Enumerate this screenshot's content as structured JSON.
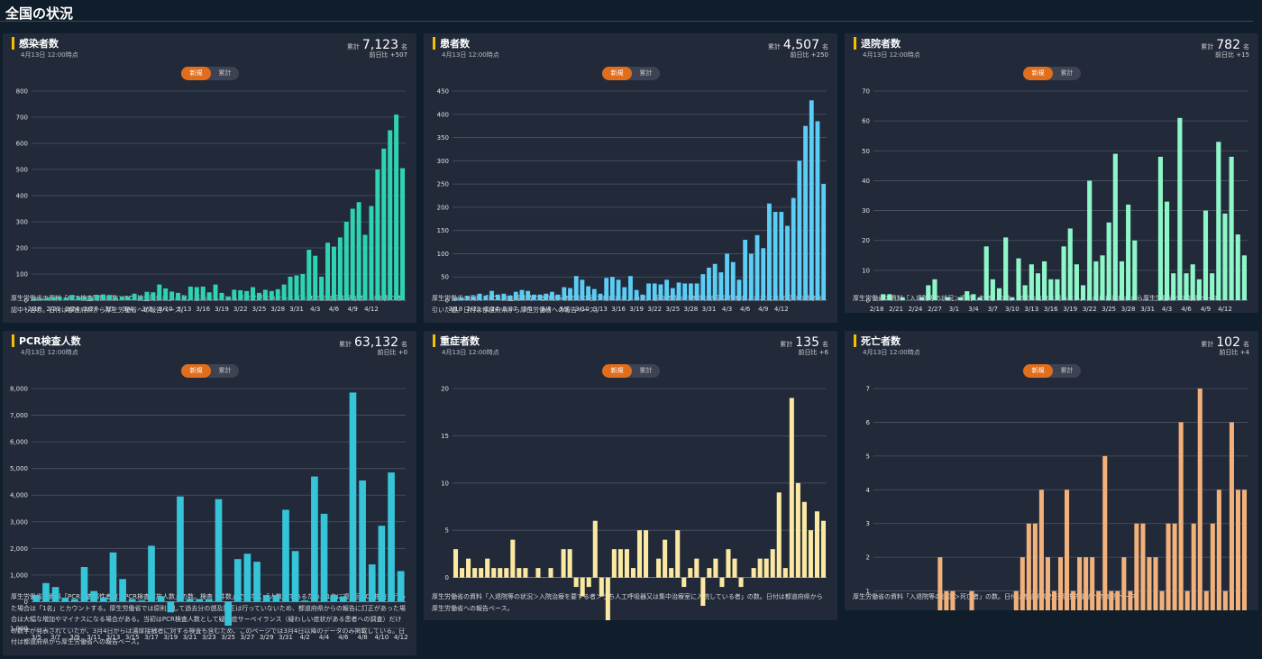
{
  "page": {
    "title": "全国の状況"
  },
  "common": {
    "total_label": "累計",
    "toggle_new": "新規",
    "toggle_cum": "累計"
  },
  "cards": [
    {
      "title": "感染者数",
      "date": "4月13日 12:00時点",
      "total": "7,123",
      "unit": "名",
      "dod": "前日比 +507",
      "note": "厚生労働省の資料「PCR検査陽性者数＞PCR検査陽性者」の数。感染はしているが症状がないケース（＝無症状病原体保有者）や症状の確認中も含む。日付は都道府県から厚生労働省への報告ベース。",
      "color": "#2ed3b2"
    },
    {
      "title": "患者数",
      "date": "4月13日 12:00時点",
      "total": "4,507",
      "unit": "名",
      "dod": "前日比 +250",
      "note": "厚生労働省の資料「PCR検査陽性時の有症状・無症状の別＞有症状者」の数。感染者数から無症状病原体保有者と症状有無確認中の数字を引いた値。日付は都道府県から厚生労働省への報告ベース。",
      "color": "#5ccdf5"
    },
    {
      "title": "退院者数",
      "date": "4月13日 12:00時点",
      "total": "782",
      "unit": "名",
      "dod": "前日比 +15",
      "note": "厚生労働省の資料「入退院等の状況＞退院した者」の数。症状の有無は問わない。日付は都道府県から厚生労働省への報告ベース。",
      "color": "#8df7c8"
    },
    {
      "title": "PCR検査人数",
      "date": "4月13日 12:00時点",
      "total": "63,132",
      "unit": "名",
      "dod": "前日比 +0",
      "note": "厚生労働省の資料「PCR検査陽性者数＞PCR検査実施人数」の数。検査「件数」ではなく「人数」であるため、1名に複数回PCR検査を行った場合は「1名」とカウントする。厚生労働省では原則として過去分の遡及訂正は行っていないため、都道府県からの報告に訂正があった場合は大幅な増加やマイナスになる場合がある。当初はPCR検査人数として疑似症サーベイランス（疑わしい症状がある患者への調査）だけの数字が発表されていたが、3月4日からは濃厚接触者に対する検査も含むため、このページでは3月4日以降のデータのみ掲載している。日付は都道府県から厚生労働省への報告ベース。",
      "color": "#36c4d8"
    },
    {
      "title": "重症者数",
      "date": "4月13日 12:00時点",
      "total": "135",
      "unit": "名",
      "dod": "前日比 +6",
      "note": "厚生労働省の資料「入退院等の状況＞入院治療を要する者＞うち人工呼吸器又は集中治療室に入院している者」の数。日付は都道府県から厚生労働省への報告ベース。",
      "color": "#fbe9a2"
    },
    {
      "title": "死亡者数",
      "date": "4月13日 12:00時点",
      "total": "102",
      "unit": "名",
      "dod": "前日比 +4",
      "note": "厚生労働省の資料「入退院等の状況＞死亡者」の数。日付は都道府県から厚生労働省への報告ベース。",
      "color": "#f2b07a"
    }
  ],
  "chart_data": [
    {
      "type": "bar",
      "series_color": "#2ed3b2",
      "ylim": [
        0,
        800
      ],
      "yticks": [
        0,
        100,
        200,
        300,
        400,
        500,
        600,
        700,
        800
      ],
      "x_start": "2/18",
      "xtick_labels": [
        "2/18",
        "2/21",
        "2/24",
        "2/27",
        "3/1",
        "3/4",
        "3/7",
        "3/10",
        "3/13",
        "3/16",
        "3/19",
        "3/22",
        "3/25",
        "3/28",
        "3/31",
        "4/3",
        "4/6",
        "4/9",
        "4/12"
      ],
      "values": [
        6,
        5,
        10,
        12,
        14,
        10,
        20,
        13,
        12,
        11,
        20,
        22,
        20,
        10,
        15,
        14,
        25,
        12,
        32,
        30,
        60,
        45,
        33,
        28,
        15,
        52,
        50,
        52,
        30,
        60,
        28,
        14,
        40,
        38,
        35,
        50,
        28,
        40,
        35,
        42,
        60,
        90,
        95,
        100,
        193,
        170,
        90,
        220,
        205,
        240,
        300,
        350,
        375,
        250,
        360,
        500,
        580,
        650,
        710,
        505
      ]
    },
    {
      "type": "bar",
      "series_color": "#5ccdf5",
      "ylim": [
        0,
        450
      ],
      "yticks": [
        0,
        50,
        100,
        150,
        200,
        250,
        300,
        350,
        400,
        450
      ],
      "x_start": "2/18",
      "xtick_labels": [
        "2/18",
        "2/21",
        "2/24",
        "2/27",
        "3/1",
        "3/4",
        "3/7",
        "3/10",
        "3/13",
        "3/16",
        "3/19",
        "3/22",
        "3/25",
        "3/28",
        "3/31",
        "4/3",
        "4/6",
        "4/9",
        "4/12"
      ],
      "values": [
        4,
        5,
        9,
        8,
        14,
        10,
        20,
        12,
        14,
        10,
        18,
        22,
        20,
        12,
        12,
        14,
        18,
        12,
        28,
        26,
        52,
        44,
        30,
        24,
        14,
        48,
        50,
        44,
        28,
        52,
        22,
        12,
        36,
        36,
        34,
        44,
        26,
        38,
        36,
        36,
        36,
        56,
        70,
        78,
        60,
        100,
        82,
        44,
        130,
        100,
        140,
        112,
        208,
        190,
        190,
        160,
        220,
        300,
        375,
        430,
        385,
        250
      ]
    },
    {
      "type": "bar",
      "series_color": "#8df7c8",
      "ylim": [
        0,
        70
      ],
      "yticks": [
        0,
        10,
        20,
        30,
        40,
        50,
        60,
        70
      ],
      "x_start": "2/18",
      "xtick_labels": [
        "2/18",
        "2/21",
        "2/24",
        "2/27",
        "3/1",
        "3/4",
        "3/7",
        "3/10",
        "3/13",
        "3/16",
        "3/19",
        "3/22",
        "3/25",
        "3/28",
        "3/31",
        "4/3",
        "4/6",
        "4/9",
        "4/12"
      ],
      "values": [
        0,
        2,
        2,
        0,
        1,
        0,
        0,
        1,
        5,
        7,
        0,
        1,
        0,
        1,
        3,
        2,
        1,
        18,
        7,
        4,
        21,
        1,
        14,
        5,
        12,
        9,
        13,
        7,
        7,
        18,
        24,
        12,
        5,
        40,
        13,
        15,
        26,
        49,
        13,
        32,
        20,
        0,
        0,
        0,
        48,
        33,
        9,
        61,
        9,
        12,
        7,
        30,
        9,
        53,
        29,
        48,
        22,
        15
      ]
    },
    {
      "type": "bar",
      "series_color": "#36c4d8",
      "ylim": [
        -1000,
        8000
      ],
      "yticks": [
        -1000,
        0,
        1000,
        2000,
        3000,
        4000,
        5000,
        6000,
        7000,
        8000
      ],
      "ytick_labels": [
        "-1,000",
        "0",
        "1,000",
        "2,000",
        "3,000",
        "4,000",
        "5,000",
        "6,000",
        "7,000",
        "8,000"
      ],
      "x_start": "3/5",
      "xtick_labels": [
        "3/5",
        "3/7",
        "3/9",
        "3/11",
        "3/13",
        "3/15",
        "3/17",
        "3/19",
        "3/21",
        "3/23",
        "3/25",
        "3/27",
        "3/29",
        "3/31",
        "4/2",
        "4/4",
        "4/6",
        "4/8",
        "4/10",
        "4/12"
      ],
      "values": [
        250,
        700,
        550,
        150,
        100,
        1300,
        400,
        150,
        1850,
        850,
        100,
        50,
        2100,
        200,
        -400,
        3950,
        100,
        100,
        100,
        3850,
        -900,
        1600,
        1800,
        1500,
        250,
        250,
        3450,
        1900,
        50,
        4700,
        3300,
        250,
        200,
        7850,
        4550,
        1400,
        2850,
        4850,
        1150
      ]
    },
    {
      "type": "bar",
      "series_color": "#fbe9a2",
      "ylim": [
        -5,
        20
      ],
      "yticks": [
        -5,
        0,
        5,
        10,
        15,
        20
      ],
      "x_start": "2/18",
      "xtick_labels": [
        "2/18",
        "2/21",
        "2/24",
        "2/27",
        "3/1",
        "3/4",
        "3/7",
        "3/10",
        "3/13",
        "3/16",
        "3/19",
        "3/22",
        "3/25",
        "3/28",
        "3/31",
        "4/3",
        "4/6",
        "4/9",
        "4/12"
      ],
      "values": [
        3,
        1,
        2,
        1,
        1,
        2,
        1,
        1,
        1,
        4,
        1,
        1,
        0,
        1,
        0,
        1,
        0,
        3,
        3,
        -1,
        -2,
        -1,
        6,
        -2,
        -5,
        3,
        3,
        3,
        1,
        5,
        5,
        0,
        2,
        4,
        1,
        5,
        -1,
        1,
        2,
        -3,
        1,
        2,
        -1,
        3,
        2,
        -1,
        0,
        1,
        2,
        2,
        3,
        9,
        1,
        19,
        10,
        8,
        5,
        7,
        6
      ]
    },
    {
      "type": "bar",
      "series_color": "#f2b07a",
      "ylim": [
        0,
        7
      ],
      "yticks": [
        0,
        1,
        2,
        3,
        4,
        5,
        6,
        7
      ],
      "x_start": "2/18",
      "xtick_labels": [
        "2/18",
        "2/21",
        "2/24",
        "2/27",
        "3/1",
        "3/4",
        "3/7",
        "3/10",
        "3/13",
        "3/16",
        "3/19",
        "3/22",
        "3/25",
        "3/28",
        "3/31",
        "4/3",
        "4/6",
        "4/9",
        "4/12"
      ],
      "values": [
        0,
        0,
        0,
        0,
        0,
        0,
        0,
        0,
        0,
        0,
        2,
        1,
        1,
        0,
        0,
        1,
        0,
        0,
        0,
        0,
        0,
        0,
        1,
        2,
        3,
        3,
        4,
        2,
        1,
        2,
        4,
        1,
        2,
        2,
        2,
        1,
        5,
        1,
        1,
        2,
        1,
        3,
        3,
        2,
        2,
        1,
        3,
        3,
        6,
        1,
        3,
        7,
        1,
        3,
        4,
        1,
        6,
        4,
        4
      ]
    }
  ]
}
